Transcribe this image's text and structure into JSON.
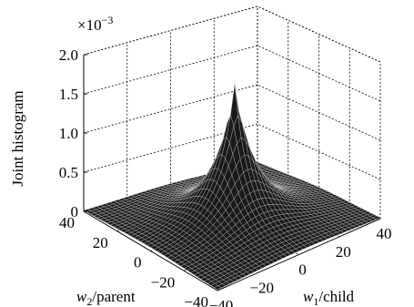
{
  "chart_data": {
    "type": "surface",
    "zlabel": "Joint histogram",
    "z_exponent_base": "×10",
    "z_exponent_power": "−3",
    "x_label_var": "w",
    "x_label_sub": "1",
    "x_label_rest": "/child",
    "y_label_var": "w",
    "y_label_sub": "2",
    "y_label_rest": "/parent",
    "z_ticks": [
      "0",
      "0.5",
      "1.0",
      "1.5",
      "2.0"
    ],
    "x_ticks": [
      "−40",
      "−20",
      "0",
      "20",
      "40"
    ],
    "y_ticks": [
      "−40",
      "−20",
      "0",
      "20",
      "40"
    ],
    "x_range": [
      -40,
      40
    ],
    "y_range": [
      -40,
      40
    ],
    "z_range": [
      0,
      2.0
    ],
    "z_scale": 0.001,
    "peak": {
      "x": 0,
      "y": 0,
      "z": 1.75
    },
    "grid": true,
    "colors": {
      "surface_fill": "#1a1a1a",
      "mesh": "#cfcfcf",
      "grid": "#000000",
      "background": "#ffffff"
    }
  }
}
